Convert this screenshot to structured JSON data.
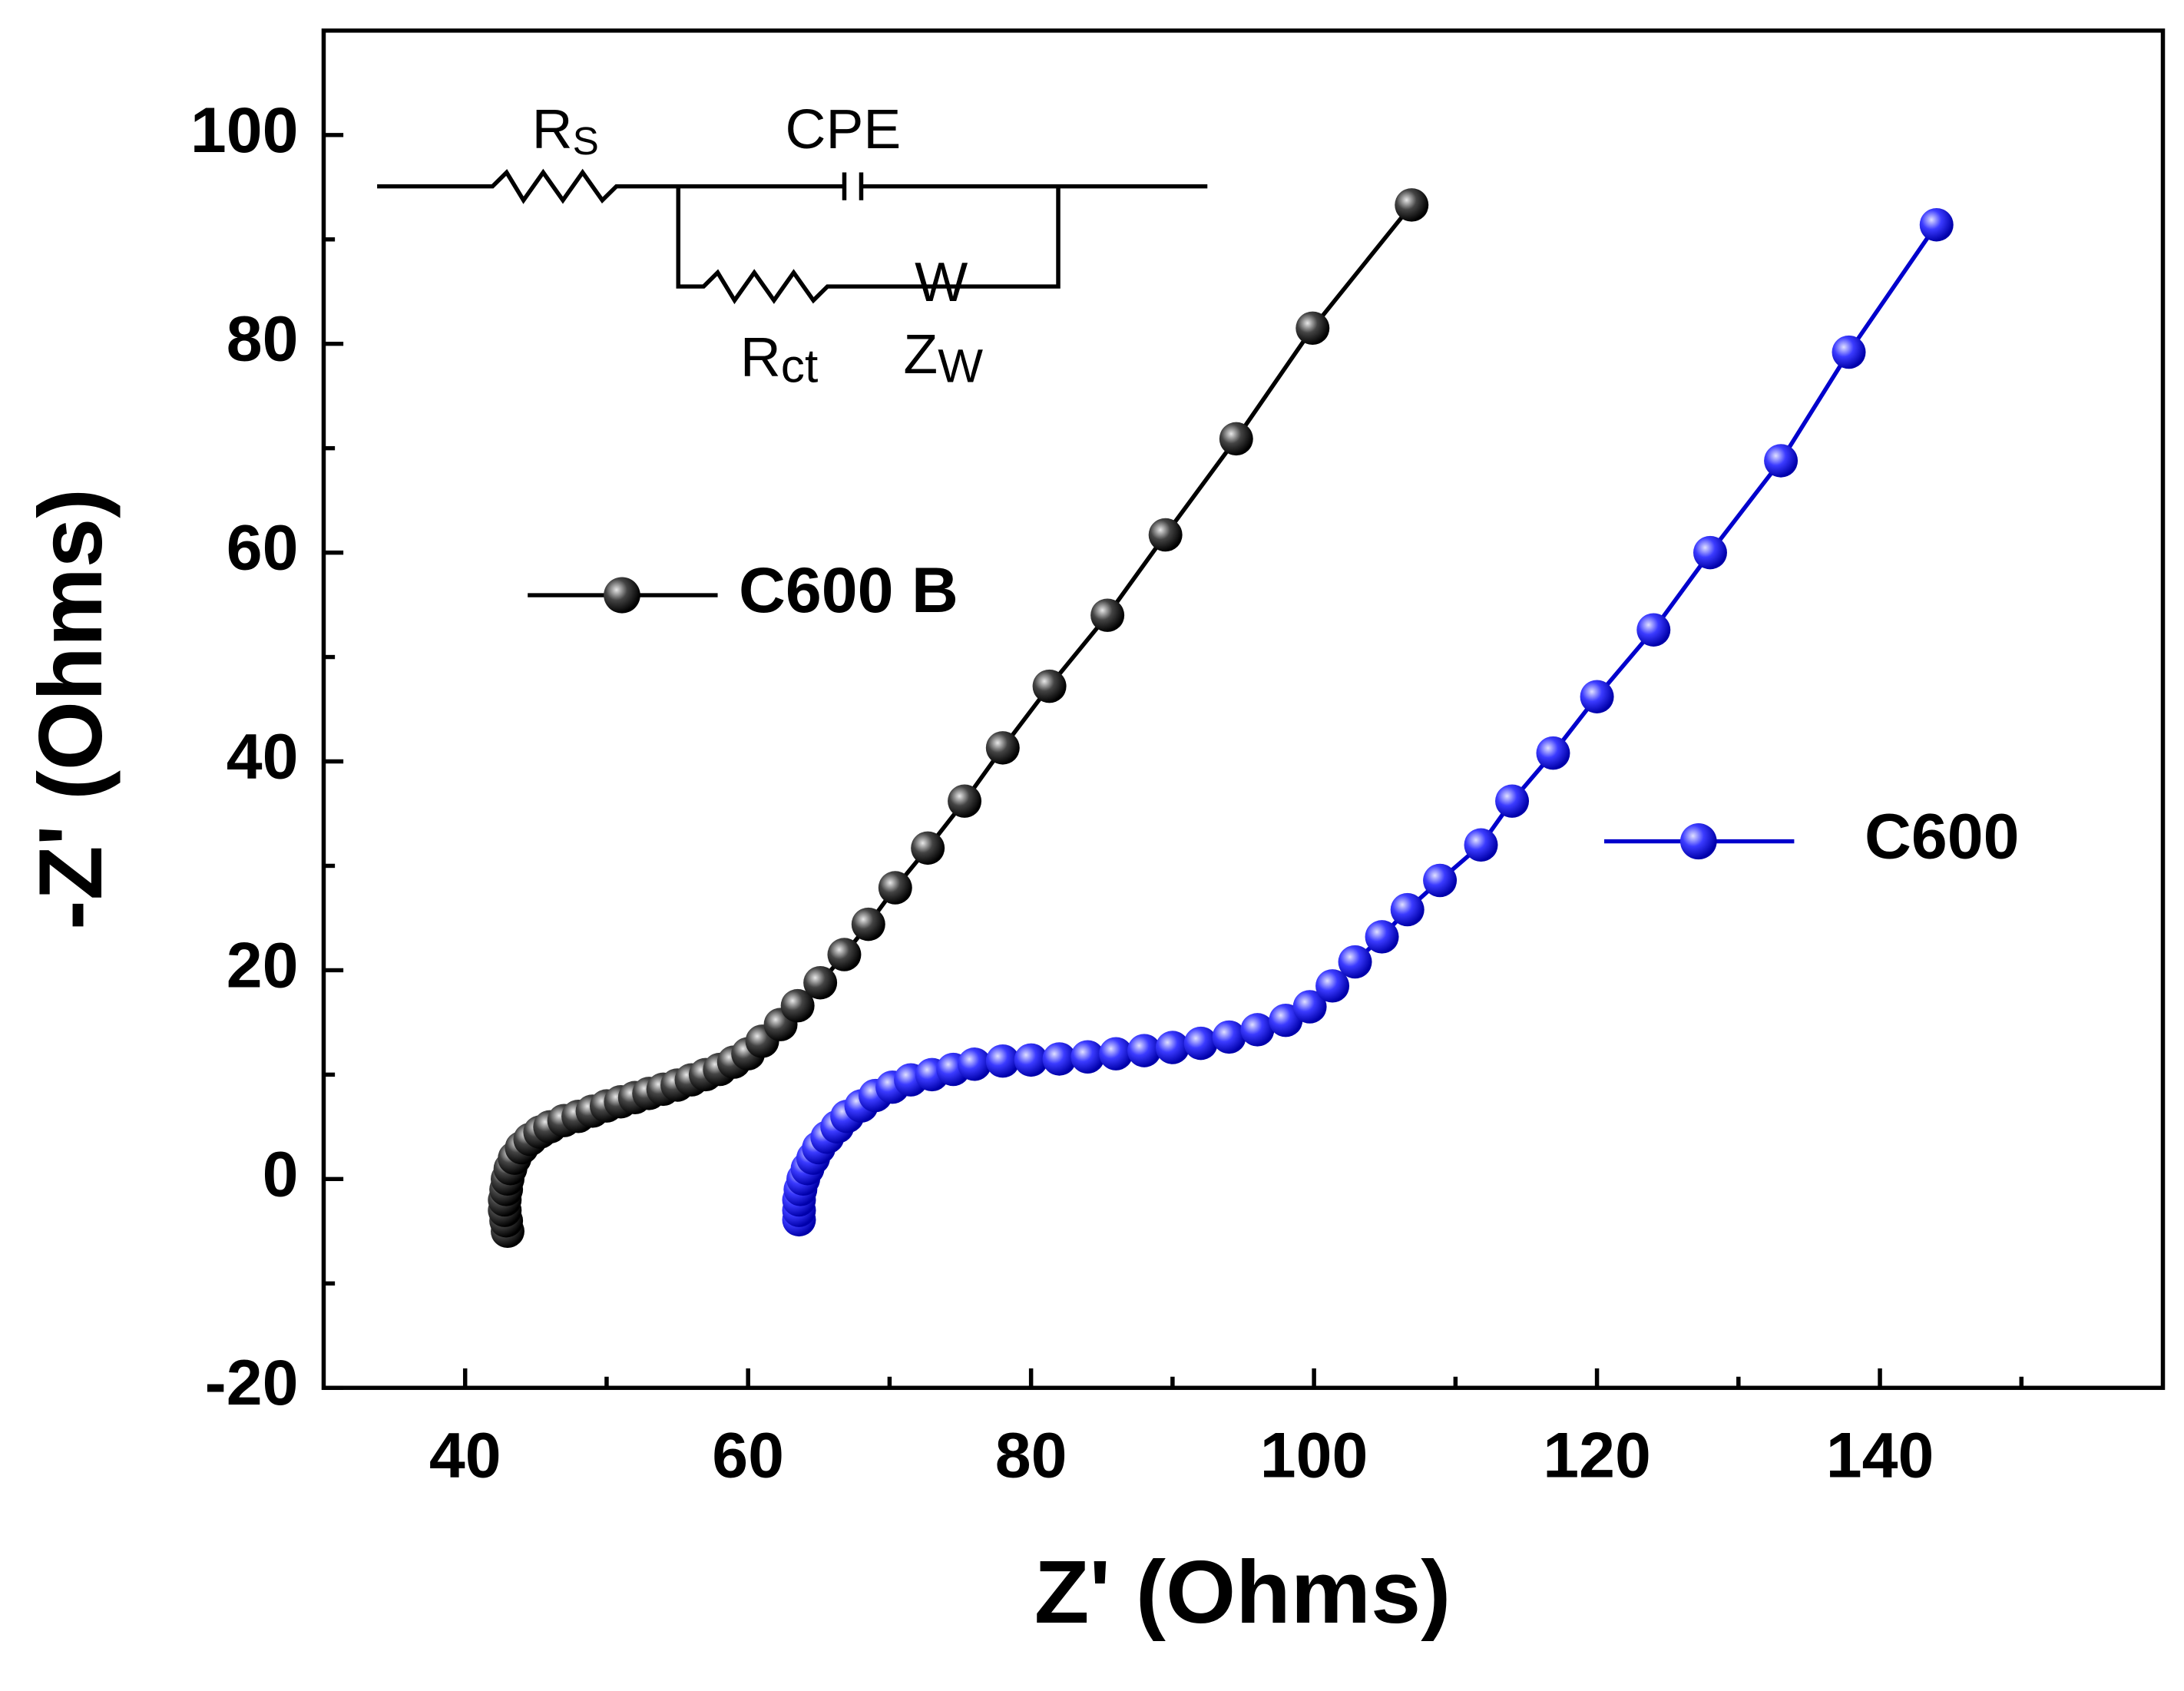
{
  "chart_data": {
    "type": "scatter",
    "x_label": "Z' (Ohms)",
    "y_label": "-Z' (Ohms)",
    "xlim": [
      30,
      160
    ],
    "xticks": [
      40,
      60,
      80,
      100,
      120,
      140
    ],
    "xminorticks": [
      50,
      70,
      90,
      110,
      130,
      150
    ],
    "ylim": [
      -20,
      110
    ],
    "yticks": [
      -20,
      0,
      20,
      40,
      60,
      80,
      100
    ],
    "yminorticks": [
      -10,
      10,
      30,
      50,
      70,
      90
    ],
    "line": true,
    "series": [
      {
        "name": "C600 B",
        "color": "#000000",
        "x": [
          43,
          42.9,
          42.8,
          42.8,
          42.9,
          43,
          43.2,
          43.5,
          44,
          44.6,
          45.3,
          46,
          47,
          48,
          49,
          50,
          51,
          52,
          53,
          54,
          55,
          56,
          57,
          58,
          59,
          60,
          61,
          62.3,
          63.5,
          65.1,
          66.8,
          68.5,
          70.4,
          72.7,
          75.3,
          78,
          81.3,
          85.4,
          89.5,
          94.5,
          99.9,
          106.9
        ],
        "values": [
          -5,
          -4,
          -3,
          -2,
          -1,
          0,
          1,
          2,
          3,
          3.8,
          4.5,
          5,
          5.6,
          6,
          6.5,
          7,
          7.4,
          7.8,
          8.2,
          8.6,
          9,
          9.5,
          10,
          10.5,
          11.2,
          12,
          13.2,
          14.8,
          16.6,
          18.8,
          21.5,
          24.4,
          27.9,
          31.7,
          36.2,
          41.3,
          47.2,
          54,
          61.7,
          70.9,
          81.5,
          93.3
        ]
      },
      {
        "name": "C600",
        "color": "#0000cc",
        "x": [
          63.6,
          63.6,
          63.6,
          63.7,
          63.9,
          64.2,
          64.6,
          65,
          65.6,
          66.3,
          67,
          68,
          69,
          70.2,
          71.5,
          73,
          74.5,
          76,
          78,
          80,
          82,
          84,
          86,
          88,
          90,
          92,
          94,
          96,
          98,
          99.7,
          101.3,
          102.9,
          104.8,
          106.6,
          108.9,
          111.8,
          114,
          116.9,
          120,
          124,
          128,
          133,
          137.8,
          144
        ],
        "values": [
          -3.9,
          -3,
          -2,
          -1,
          0,
          1,
          2,
          3,
          4,
          5,
          6,
          7,
          8,
          8.8,
          9.5,
          10,
          10.5,
          11,
          11.3,
          11.4,
          11.5,
          11.7,
          12,
          12.3,
          12.6,
          13,
          13.6,
          14.3,
          15.2,
          16.5,
          18.5,
          20.8,
          23.2,
          25.8,
          28.6,
          32,
          36.2,
          40.8,
          46.2,
          52.6,
          60,
          68.8,
          79.2,
          91.4
        ]
      }
    ],
    "circuit": {
      "rs": "R",
      "rs_sub": "S",
      "cpe": "CPE",
      "rct": "R",
      "rct_sub": "ct",
      "w": "W",
      "zw": "Z",
      "zw_sub": "W"
    }
  }
}
